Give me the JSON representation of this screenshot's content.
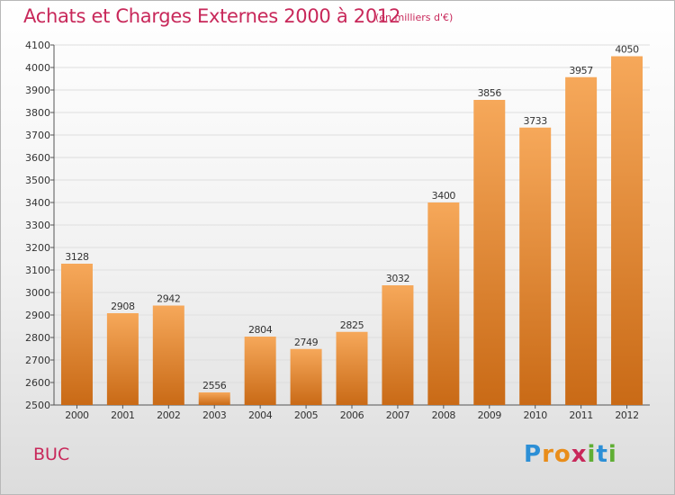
{
  "header": {
    "title": "Achats et Charges Externes 2000 à 2012",
    "unit_note": "(en milliers d'€)"
  },
  "footer": {
    "commune": "BUC",
    "logo_letters": [
      "P",
      "r",
      "o",
      "x",
      "i",
      "t",
      "i"
    ],
    "logo_colors": [
      "#2c8fd6",
      "#e98d1a",
      "#e98d1a",
      "#c8285a",
      "#5fae34",
      "#2c8fd6",
      "#5fae34"
    ]
  },
  "colors": {
    "bar_top": "#f6a85a",
    "bar_bottom": "#c96a16",
    "grid": "#dedede",
    "text": "#333333",
    "accent": "#c8285a"
  },
  "chart_data": {
    "type": "bar",
    "categories": [
      "2000",
      "2001",
      "2002",
      "2003",
      "2004",
      "2005",
      "2006",
      "2007",
      "2008",
      "2009",
      "2010",
      "2011",
      "2012"
    ],
    "values": [
      3128,
      2908,
      2942,
      2556,
      2804,
      2749,
      2825,
      3032,
      3400,
      3856,
      3733,
      3957,
      4050
    ],
    "ylim": [
      2500,
      4100
    ],
    "yticks": [
      2500,
      2600,
      2700,
      2800,
      2900,
      3000,
      3100,
      3200,
      3300,
      3400,
      3500,
      3600,
      3700,
      3800,
      3900,
      4000,
      4100
    ],
    "grid": true,
    "data_labels": true
  }
}
